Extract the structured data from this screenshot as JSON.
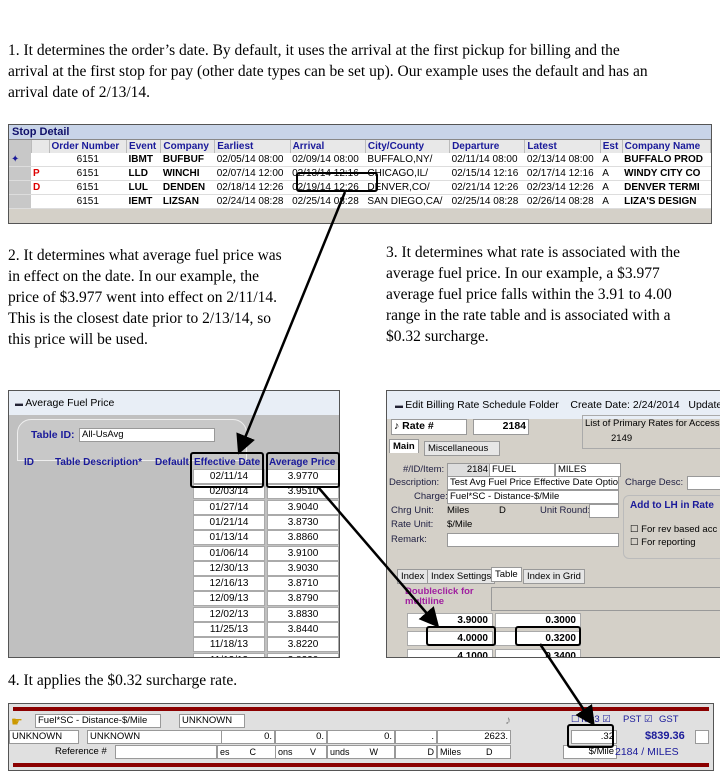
{
  "steps": {
    "step1": "1.  It determines  the order’s date. By default, it uses the arrival at the first pickup for billing and the arrival at the first stop for pay (other date types can be set up). Our example uses the default and has an arrival date of 2/13/14.",
    "step2": "2.  It determines  what average fuel price was in effect on the date. In our example, the price of $3.977 went into effect on 2/11/14.  This is the closest date prior to 2/13/14, so this price will be used.",
    "step3": "3.  It determines  what rate is associated with the average fuel price. In our example, a $3.977 average fuel price falls within the 3.91 to 4.00 range in the rate table and is associated with a $0.32 surcharge.",
    "step4": "4.  It applies the $0.32 surcharge rate."
  },
  "stop_detail": {
    "title": "Stop Detail",
    "columns": [
      "Order Number",
      "Event",
      "Company",
      "Earliest",
      "Arrival",
      "City/County",
      "Departure",
      "Latest",
      "Est",
      "Company Name"
    ],
    "rows": [
      {
        "flag": "",
        "icon": "runner",
        "cells": [
          "6151",
          "IBMT",
          "BUFBUF",
          "02/05/14 08:00",
          "02/09/14 08:00",
          "BUFFALO,NY/",
          "02/11/14 08:00",
          "02/13/14 08:00",
          "A",
          "BUFFALO PROD"
        ]
      },
      {
        "flag": "P",
        "cells": [
          "6151",
          "LLD",
          "WINCHI",
          "02/07/14 12:00",
          "02/13/14 12:16",
          "CHICAGO,IL/",
          "02/15/14 12:16",
          "02/17/14 12:16",
          "A",
          "WINDY CITY CO"
        ]
      },
      {
        "flag": "D",
        "cells": [
          "6151",
          "LUL",
          "DENDEN",
          "02/18/14 12:26",
          "02/19/14 12:26",
          "DENVER,CO/",
          "02/21/14 12:26",
          "02/23/14 12:26",
          "A",
          "DENVER TERMI"
        ]
      },
      {
        "flag": "",
        "cells": [
          "6151",
          "IEMT",
          "LIZSAN",
          "02/24/14 08:28",
          "02/25/14 08:28",
          "SAN DIEGO,CA/",
          "02/25/14 08:28",
          "02/26/14 08:28",
          "A",
          "LIZA'S DESIGN"
        ]
      }
    ]
  },
  "fuel_window": {
    "title": "Average Fuel Price",
    "table_id_label": "Table ID:",
    "table_id": "All-UsAvg",
    "headers": [
      "ID",
      "Table Description*",
      "Default",
      "Effective Date",
      "Average Price"
    ],
    "rows": [
      [
        "02/11/14",
        "3.9770"
      ],
      [
        "02/03/14",
        "3.9510"
      ],
      [
        "01/27/14",
        "3.9040"
      ],
      [
        "01/21/14",
        "3.8730"
      ],
      [
        "01/13/14",
        "3.8860"
      ],
      [
        "01/06/14",
        "3.9100"
      ],
      [
        "12/30/13",
        "3.9030"
      ],
      [
        "12/16/13",
        "3.8710"
      ],
      [
        "12/09/13",
        "3.8790"
      ],
      [
        "12/02/13",
        "3.8830"
      ],
      [
        "11/25/13",
        "3.8440"
      ],
      [
        "11/18/13",
        "3.8220"
      ],
      [
        "11/12/13",
        "3.8220"
      ]
    ]
  },
  "billing_window": {
    "title": "Edit Billing Rate Schedule Folder",
    "create_date": "Create Date: 2/24/2014",
    "updated": "Updated",
    "rate_label": "Rate #",
    "rate_value": "2184",
    "primary_list_label": "List of Primary Rates for Access",
    "primary_list_value": "2149",
    "tabs": [
      "Main",
      "Miscellaneous"
    ],
    "id_label": "#/ID/Item:",
    "id_num": "2184",
    "id_code": "FUEL",
    "id_item": "MILES",
    "desc_label": "Description:",
    "desc": "Test Avg Fuel Price Effective Date Options",
    "charge_desc_label": "Charge Desc:",
    "charge_label": "Charge:",
    "charge": "Fuel*SC - Distance-$/Mile",
    "chrg_unit_label": "Chrg Unit:",
    "chrg_unit": "Miles",
    "chrg_unit_flag": "D",
    "unit_round_label": "Unit Round:",
    "rate_unit_label": "Rate Unit:",
    "rate_unit": "$/Mile",
    "remark_label": "Remark:",
    "add_lh_label": "Add to LH in Rate",
    "chk_rev": "For rev based acc",
    "chk_reporting": "For reporting",
    "lower_tabs": [
      "Index",
      "Index Settings",
      "Table",
      "Index in Grid"
    ],
    "doubleclick": "Doubleclick for multiline",
    "table_rows": [
      [
        "3.9000",
        "0.3000"
      ],
      [
        "4.0000",
        "0.3200"
      ],
      [
        "4.1000",
        "0.3400"
      ]
    ]
  },
  "bottom_bar": {
    "charge": "Fuel*SC - Distance-$/Mile",
    "unknown1": "UNKNOWN",
    "unknown2": "UNKNOWN",
    "unknown3": "UNKNOWN",
    "vals": [
      "0.",
      "0.",
      "0.",
      ".",
      "2623."
    ],
    "rate": ".32",
    "amount": "$839.36",
    "tax3": "Tax3",
    "pst": "PST",
    "gst": "GST",
    "reference_label": "Reference #",
    "row3": [
      "es",
      "C",
      "ons",
      "V",
      "unds",
      "W",
      "D",
      "Miles",
      "D"
    ],
    "unit": "$/Mile",
    "rate_ref": "2184 / MILES"
  },
  "colors": {
    "highlight": "#000000",
    "header_text": "#1a1a9a",
    "bar_red": "#8b0000"
  }
}
